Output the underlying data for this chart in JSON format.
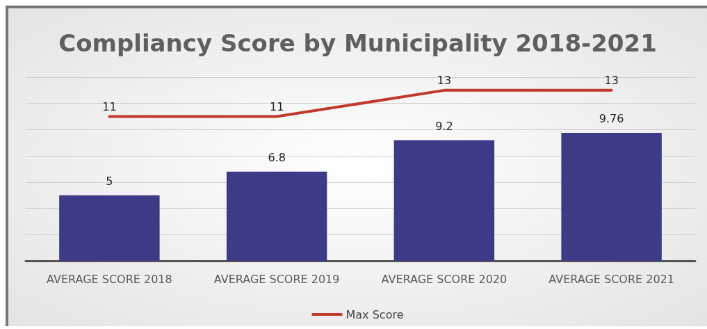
{
  "chart_data": {
    "type": "bar",
    "title": "Compliancy Score by Municipality 2018-2021",
    "categories": [
      "AVERAGE SCORE 2018",
      "AVERAGE SCORE 2019",
      "AVERAGE SCORE 2020",
      "AVERAGE SCORE 2021"
    ],
    "series": [
      {
        "color": "#3d3a87",
        "values": [
          5,
          6.8,
          9.2,
          9.76
        ]
      },
      {
        "type": "line",
        "name": "Max Score",
        "color": "#c0392b",
        "values": [
          11,
          11,
          13,
          13
        ]
      }
    ],
    "ylim": [
      0,
      14
    ],
    "yticks": [
      {
        "value": 0,
        "label": null
      },
      {
        "value": 2,
        "label": null
      },
      {
        "value": 4,
        "label": null
      },
      {
        "value": 6,
        "label": null
      },
      {
        "value": 8,
        "label": null
      },
      {
        "value": 10,
        "label": null
      },
      {
        "value": 12,
        "label": null
      },
      {
        "value": 14,
        "label": null
      }
    ],
    "tick_labels": "x",
    "grid": "y",
    "legend": "bottom",
    "data_labels": true,
    "marker": "none"
  }
}
